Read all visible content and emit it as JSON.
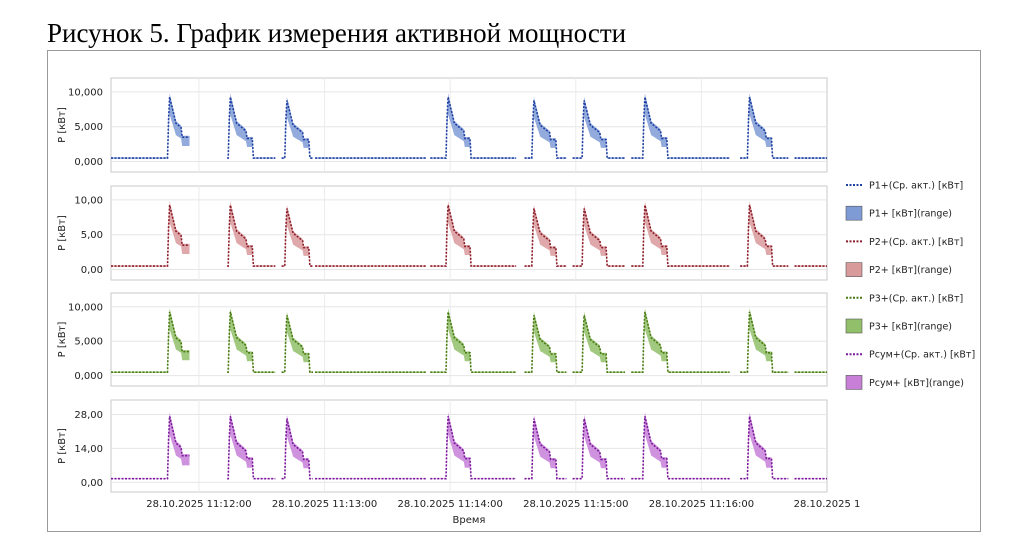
{
  "caption": "Рисунок 5. График измерения активной мощности",
  "chart_data": {
    "type": "line",
    "xlabel": "Время",
    "x_ticks": [
      "28.10.2025 11:12:00",
      "28.10.2025 11:13:00",
      "28.10.2025 11:14:00",
      "28.10.2025 11:15:00",
      "28.10.2025 11:16:00",
      "28.10.2025 1"
    ],
    "x_tick_seconds": [
      0,
      60,
      120,
      180,
      240,
      300
    ],
    "x_range_seconds": [
      -42,
      300
    ],
    "grid": true,
    "legend_position": "right",
    "legend": [
      {
        "label": "P1+(Ср. акт.) [кВт]",
        "kind": "line",
        "color": "#1f3fa0"
      },
      {
        "label": "P1+ [кВт](range)",
        "kind": "area",
        "color": "#7f9bd6"
      },
      {
        "label": "P2+(Ср. акт.) [кВт]",
        "kind": "line",
        "color": "#8b1e2a"
      },
      {
        "label": "P2+ [кВт](range)",
        "kind": "area",
        "color": "#d99a9c"
      },
      {
        "label": "P3+(Ср. акт.) [кВт]",
        "kind": "line",
        "color": "#4a7a12"
      },
      {
        "label": "P3+ [кВт](range)",
        "kind": "area",
        "color": "#92c06a"
      },
      {
        "label": "Pсум+(Ср. акт.) [кВт]",
        "kind": "line",
        "color": "#7a1a9a"
      },
      {
        "label": "Pсум+ [кВт](range)",
        "kind": "area",
        "color": "#c77fd8"
      }
    ],
    "panels": [
      {
        "name": "P1+",
        "ylabel": "P [кВт]",
        "ylim": [
          -1.5,
          12
        ],
        "yticks": [
          0,
          5,
          10
        ],
        "ytick_labels": [
          "0,000",
          "5,000",
          "10,000"
        ],
        "line_color": "#1f3fa0",
        "fill_color": "#7f9bd6"
      },
      {
        "name": "P2+",
        "ylabel": "P [кВт]",
        "ylim": [
          -1.5,
          12
        ],
        "yticks": [
          0,
          5,
          10
        ],
        "ytick_labels": [
          "0,00",
          "5,00",
          "10,00"
        ],
        "line_color": "#8b1e2a",
        "fill_color": "#d99a9c"
      },
      {
        "name": "P3+",
        "ylabel": "P [кВт]",
        "ylim": [
          -1.5,
          12
        ],
        "yticks": [
          0,
          5,
          10
        ],
        "ytick_labels": [
          "0,000",
          "5,000",
          "10,000"
        ],
        "line_color": "#4a7a12",
        "fill_color": "#92c06a"
      },
      {
        "name": "Pсум+",
        "ylabel": "P [кВт]",
        "ylim": [
          -4,
          34
        ],
        "yticks": [
          0,
          14,
          28
        ],
        "ytick_labels": [
          "0,00",
          "14,00",
          "28,00"
        ],
        "line_color": "#7a1a9a",
        "fill_color": "#c77fd8"
      }
    ],
    "baseline_kw": {
      "P1+": 0.5,
      "P2+": 0.5,
      "P3+": 0.5,
      "Pсум+": 1.5
    },
    "pulse_starts_seconds": [
      -15,
      14,
      41,
      118,
      159,
      183,
      212,
      262
    ],
    "pulse_peak_kw": [
      9.5,
      9.5,
      9.0,
      9.5,
      9.0,
      9.0,
      9.5,
      9.5
    ],
    "pulse_peak_sum_kw": [
      28,
      28,
      27,
      28,
      27,
      27,
      28,
      28
    ],
    "secondary_plateau": {
      "start_seconds": -8,
      "end_seconds": -3,
      "value_kw": 3.5,
      "value_sum_kw": 11
    },
    "gaps_seconds": [
      [
        -4,
        11
      ],
      [
        -1,
        13
      ],
      [
        37,
        39
      ],
      [
        55,
        55
      ],
      [
        109,
        110
      ],
      [
        152,
        155
      ],
      [
        176,
        178
      ],
      [
        204,
        206
      ],
      [
        254,
        258
      ],
      [
        282,
        284
      ]
    ]
  }
}
